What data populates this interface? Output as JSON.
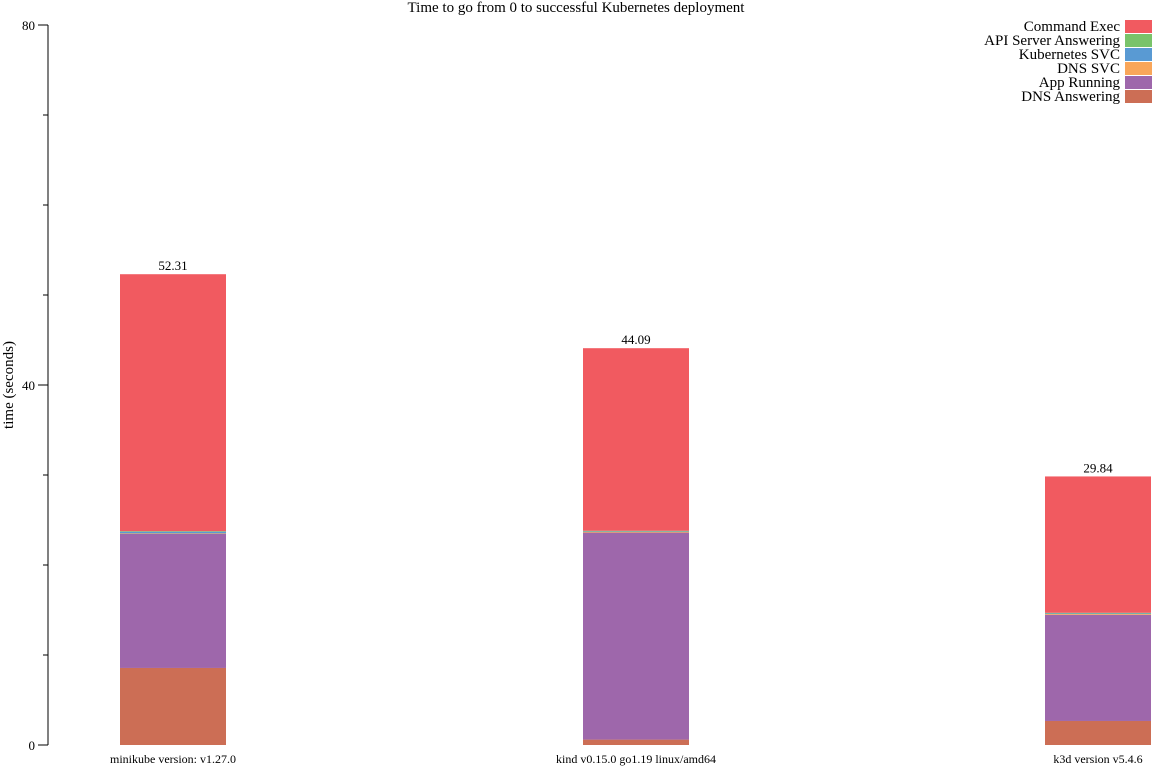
{
  "chart_data": {
    "type": "bar",
    "stacked": true,
    "title": "Time to go from 0 to successful Kubernetes deployment",
    "xlabel": "",
    "ylabel": "time (seconds)",
    "ylim": [
      0,
      80
    ],
    "yticks_labeled": [
      0,
      40,
      80
    ],
    "yticks_minor": [
      10,
      20,
      30,
      50,
      60,
      70
    ],
    "grid": false,
    "legend_position": "top-right",
    "categories": [
      "minikube version: v1.27.0",
      "kind v0.15.0 go1.19 linux/amd64",
      "k3d version v5.4.6"
    ],
    "totals": [
      "52.31",
      "44.09",
      "29.84"
    ],
    "series": [
      {
        "name": "DNS Answering",
        "color": "#cc6e55",
        "values": [
          8.56,
          0.6,
          2.67
        ]
      },
      {
        "name": "App Running",
        "color": "#9e67ab",
        "values": [
          14.9,
          23.0,
          11.8
        ]
      },
      {
        "name": "DNS SVC",
        "color": "#f9a65a",
        "values": [
          0.05,
          0.1,
          0.1
        ]
      },
      {
        "name": "Kubernetes SVC",
        "color": "#599ad3",
        "values": [
          0.2,
          0.05,
          0.05
        ]
      },
      {
        "name": "API Server Answering",
        "color": "#79c36a",
        "values": [
          0.05,
          0.05,
          0.07
        ]
      },
      {
        "name": "Command Exec",
        "color": "#f15a60",
        "values": [
          28.55,
          20.29,
          15.15
        ]
      }
    ]
  }
}
